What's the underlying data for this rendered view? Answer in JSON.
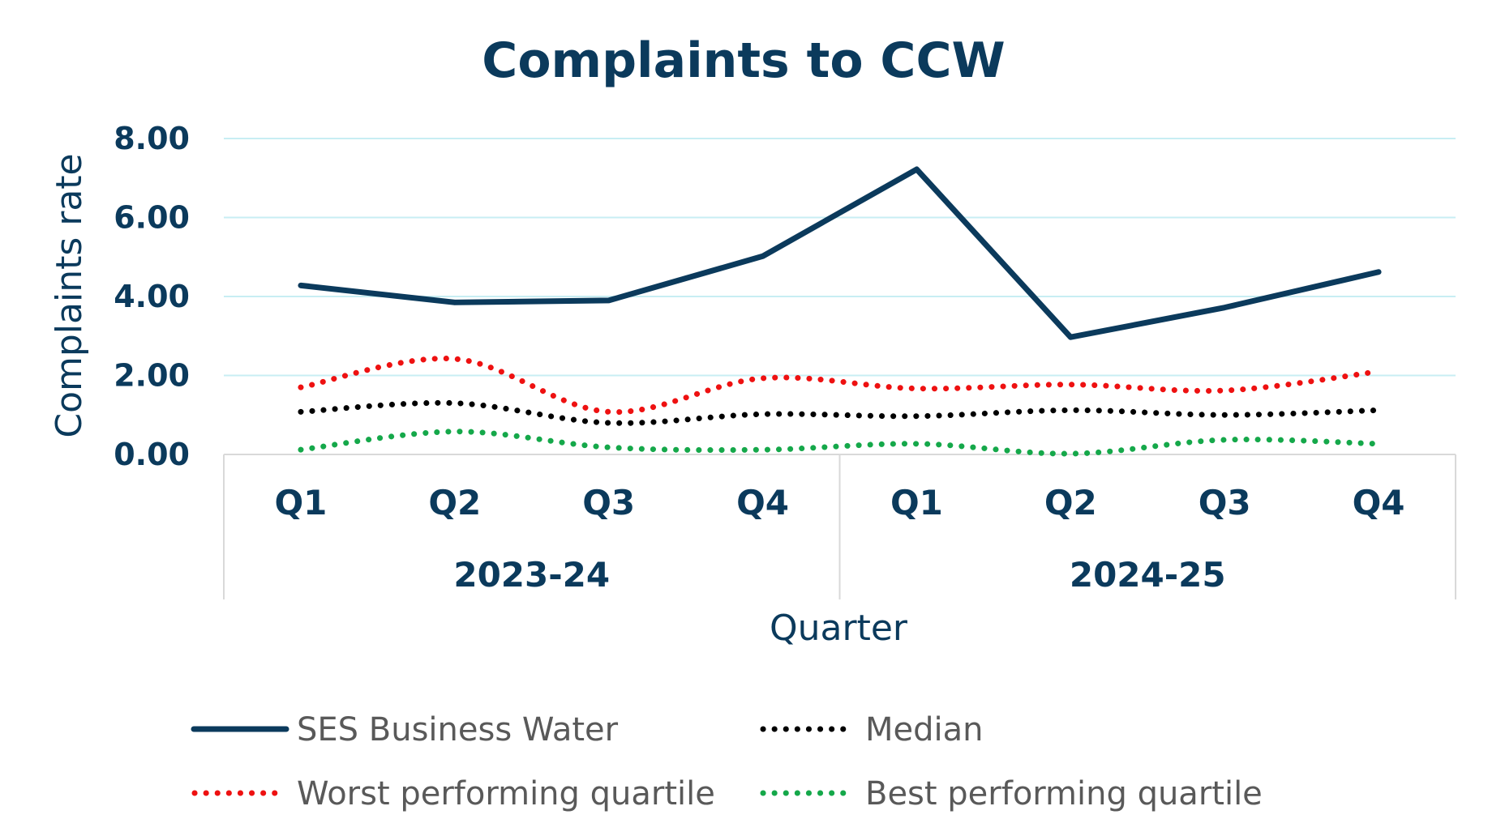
{
  "chart_data": {
    "type": "line",
    "title": "Complaints to CCW",
    "ylabel": "Complaints rate",
    "xlabel": "Quarter",
    "ylim": [
      0,
      8
    ],
    "yticks": [
      "0.00",
      "2.00",
      "4.00",
      "6.00",
      "8.00"
    ],
    "categories": [
      "Q1",
      "Q2",
      "Q3",
      "Q4",
      "Q1",
      "Q2",
      "Q3",
      "Q4"
    ],
    "groups": [
      {
        "label": "2023-24",
        "span": 4
      },
      {
        "label": "2024-25",
        "span": 4
      }
    ],
    "grid": true,
    "legend_position": "bottom",
    "series": [
      {
        "name": "SES Business Water",
        "style": "solid",
        "color": "#0b3a5c",
        "values": [
          4.28,
          3.85,
          3.9,
          5.02,
          7.22,
          2.97,
          3.72,
          4.62
        ]
      },
      {
        "name": "Median",
        "style": "dotted",
        "color": "#000000",
        "values": [
          1.08,
          1.3,
          0.8,
          1.02,
          0.97,
          1.12,
          1.0,
          1.12
        ]
      },
      {
        "name": "Worst performing quartile",
        "style": "dotted",
        "color": "#ee1111",
        "values": [
          1.7,
          2.42,
          1.08,
          1.93,
          1.67,
          1.77,
          1.62,
          2.1
        ]
      },
      {
        "name": "Best performing quartile",
        "style": "dotted",
        "color": "#15a84a",
        "values": [
          0.12,
          0.58,
          0.18,
          0.12,
          0.27,
          0.02,
          0.37,
          0.27
        ]
      }
    ]
  }
}
